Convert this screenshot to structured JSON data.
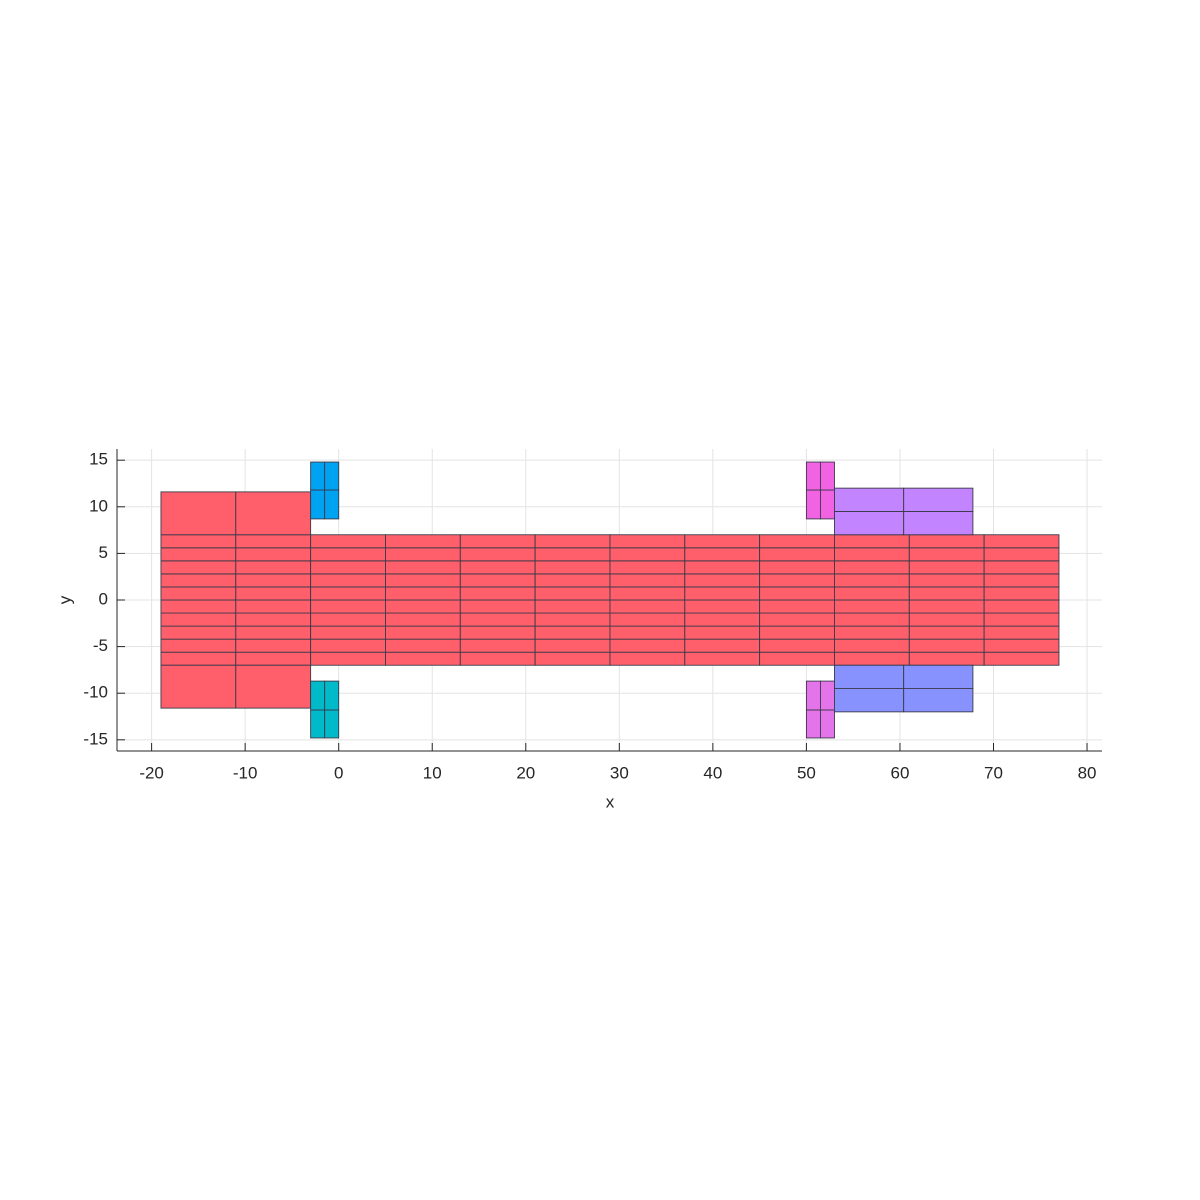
{
  "chart_data": {
    "type": "patch-grid",
    "xlabel": "x",
    "ylabel": "y",
    "xlim": [
      -23.7,
      81.6
    ],
    "ylim": [
      -16.2,
      16.2
    ],
    "xticks": [
      -20,
      -10,
      0,
      10,
      20,
      30,
      40,
      50,
      60,
      70,
      80
    ],
    "yticks": [
      -15,
      -10,
      -5,
      0,
      5,
      10,
      15
    ],
    "grid": true,
    "patches": [
      {
        "color": "#ff5f6b",
        "xedges": [
          -19,
          -11,
          -3,
          5,
          13,
          21,
          29,
          37,
          45,
          53,
          61,
          69,
          77
        ],
        "yedges": [
          -7,
          -5.6,
          -4.2,
          -2.8,
          -1.4,
          0,
          1.4,
          2.8,
          4.2,
          5.6,
          7
        ]
      },
      {
        "color": "#ff5f6b",
        "xedges": [
          -19,
          -11,
          -3
        ],
        "yedges": [
          7,
          11.6
        ]
      },
      {
        "color": "#ff5f6b",
        "xedges": [
          -19,
          -11,
          -3
        ],
        "yedges": [
          -11.6,
          -7
        ]
      },
      {
        "color": "#00a2f2",
        "xedges": [
          -3,
          -1.5,
          0
        ],
        "yedges": [
          8.7,
          11.8,
          14.8
        ]
      },
      {
        "color": "#00b9c9",
        "xedges": [
          -3,
          -1.5,
          0
        ],
        "yedges": [
          -14.8,
          -11.8,
          -8.7
        ]
      },
      {
        "color": "#f163e2",
        "xedges": [
          50,
          51.5,
          53
        ],
        "yedges": [
          8.7,
          11.8,
          14.8
        ]
      },
      {
        "color": "#e474ea",
        "xedges": [
          50,
          51.5,
          53
        ],
        "yedges": [
          -14.8,
          -11.8,
          -8.7
        ]
      },
      {
        "color": "#c284ff",
        "xedges": [
          53,
          60.4,
          67.8
        ],
        "yedges": [
          7,
          9.5,
          12
        ]
      },
      {
        "color": "#8892ff",
        "xedges": [
          53,
          60.4,
          67.8
        ],
        "yedges": [
          -12,
          -9.5,
          -7
        ]
      }
    ]
  }
}
